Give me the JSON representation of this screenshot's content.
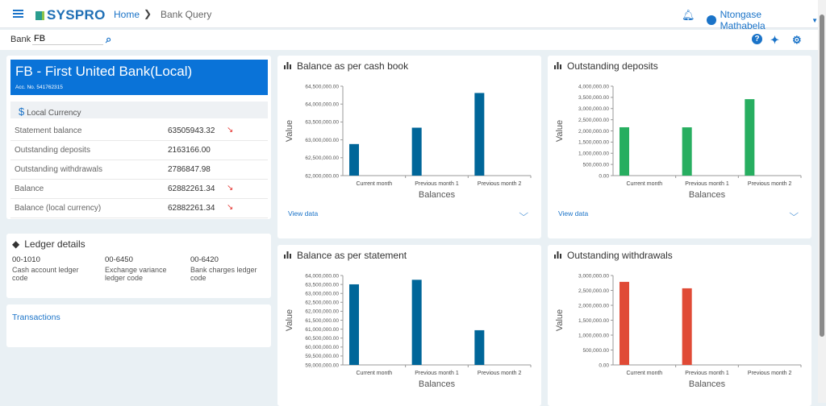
{
  "header": {
    "brand": "SYSPRO",
    "breadcrumb_home": "Home",
    "breadcrumb_current": "Bank Query",
    "user_name": "Ntongase Mathabela"
  },
  "search": {
    "label": "Bank",
    "value": "FB"
  },
  "bank": {
    "title": "FB - First United Bank(Local)",
    "account": "Acc. No. 541762315",
    "currency_label": "Local Currency",
    "rows": [
      {
        "label": "Statement balance",
        "value": "63505943.32",
        "trend": "down"
      },
      {
        "label": "Outstanding deposits",
        "value": "2163166.00",
        "trend": ""
      },
      {
        "label": "Outstanding withdrawals",
        "value": "2786847.98",
        "trend": ""
      },
      {
        "label": "Balance",
        "value": "62882261.34",
        "trend": "down"
      },
      {
        "label": "Balance (local currency)",
        "value": "62882261.34",
        "trend": "down"
      }
    ]
  },
  "ledger": {
    "title": "Ledger details",
    "items": [
      {
        "code": "00-1010",
        "desc": "Cash account ledger code"
      },
      {
        "code": "00-6450",
        "desc": "Exchange variance ledger code"
      },
      {
        "code": "00-6420",
        "desc": "Bank charges ledger code"
      }
    ]
  },
  "transactions": {
    "label": "Transactions"
  },
  "view_data_label": "View data",
  "colors": {
    "accent": "#0a73d8",
    "blue_bar": "#006699",
    "green_bar": "#27ae60",
    "red_bar": "#e04a36"
  },
  "chart_data": [
    {
      "type": "bar",
      "title": "Balance as per cash book",
      "xlabel": "Balances",
      "ylabel": "Value",
      "categories": [
        "Current month",
        "Previous month 1",
        "Previous month 2"
      ],
      "values": [
        62882261.34,
        63340000,
        64310000
      ],
      "ylim": [
        62000000,
        64500000
      ],
      "ytick_step": 500000,
      "color": "#006699"
    },
    {
      "type": "bar",
      "title": "Outstanding deposits",
      "xlabel": "Balances",
      "ylabel": "Value",
      "categories": [
        "Current month",
        "Previous month 1",
        "Previous month 2"
      ],
      "values": [
        2163166,
        2160000,
        3420000
      ],
      "ylim": [
        0,
        4000000
      ],
      "ytick_step": 500000,
      "color": "#27ae60"
    },
    {
      "type": "bar",
      "title": "Balance as per statement",
      "xlabel": "Balances",
      "ylabel": "Value",
      "categories": [
        "Current month",
        "Previous month 1",
        "Previous month 2"
      ],
      "values": [
        63505943.32,
        63760000,
        60940000
      ],
      "ylim": [
        59000000,
        64000000
      ],
      "ytick_step": 500000,
      "color": "#006699"
    },
    {
      "type": "bar",
      "title": "Outstanding withdrawals",
      "xlabel": "Balances",
      "ylabel": "Value",
      "categories": [
        "Current month",
        "Previous month 1",
        "Previous month 2"
      ],
      "values": [
        2786847.98,
        2570000,
        0
      ],
      "ylim": [
        0,
        3000000
      ],
      "ytick_step": 500000,
      "color": "#e04a36"
    }
  ]
}
